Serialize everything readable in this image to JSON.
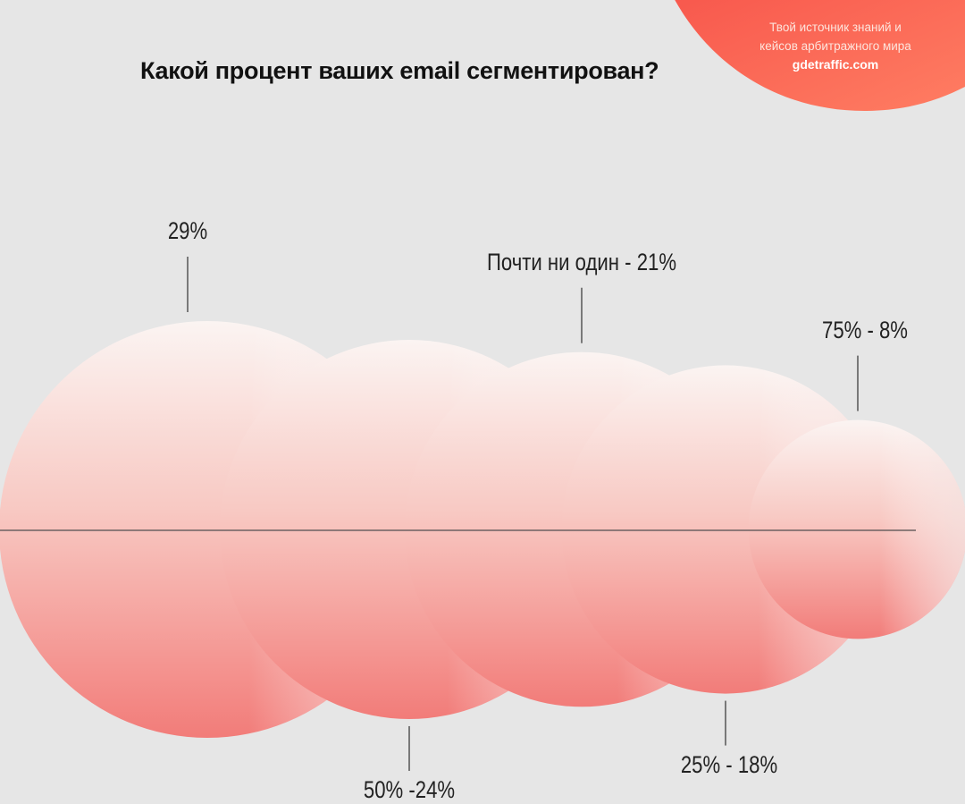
{
  "chart_data": {
    "type": "bubble",
    "title": "Какой процент ваших email сегментирован?",
    "categories": [
      "29%",
      "50%",
      "Почти  ни один",
      "25%",
      "75%"
    ],
    "values": [
      29,
      24,
      21,
      18,
      8
    ],
    "labels": [
      "29%",
      "50% -24%",
      "Почти  ни один  - 21%",
      "25% - 18%",
      "75% - 8%"
    ],
    "label_positions": [
      "top",
      "bottom",
      "top",
      "bottom",
      "top"
    ],
    "colors": {
      "bubble_top": "#fbf3f1",
      "bubble_bottom": "#f27d7a",
      "axis": "#6b6161",
      "background": "#e6e6e6"
    }
  },
  "brand": {
    "line1": "Твой источник знаний и",
    "line2": "кейсов арбитражного мира",
    "url": "gdetraffic.com",
    "color": "#f9614f"
  }
}
